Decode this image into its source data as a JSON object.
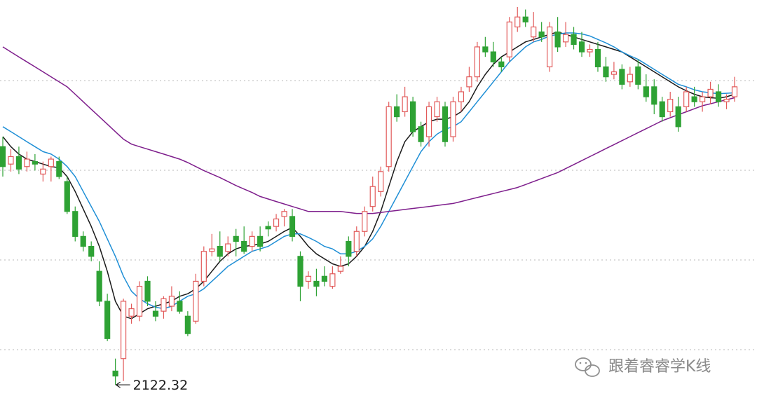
{
  "chart_data": {
    "type": "candlestick",
    "title": "",
    "xlabel": "",
    "ylabel": "",
    "price_range": [
      2110,
      2880
    ],
    "grid": {
      "horizontal": true,
      "style": "dotted"
    },
    "candles": [
      [
        2600,
        2560,
        2620,
        2540
      ],
      [
        2565,
        2580,
        2595,
        2550
      ],
      [
        2580,
        2555,
        2600,
        2545
      ],
      [
        2560,
        2575,
        2590,
        2550
      ],
      [
        2570,
        2565,
        2585,
        2552
      ],
      [
        2545,
        2555,
        2570,
        2530
      ],
      [
        2560,
        2575,
        2580,
        2530
      ],
      [
        2570,
        2540,
        2580,
        2535
      ],
      [
        2530,
        2470,
        2540,
        2465
      ],
      [
        2470,
        2420,
        2480,
        2410
      ],
      [
        2420,
        2400,
        2430,
        2390
      ],
      [
        2400,
        2380,
        2410,
        2370
      ],
      [
        2350,
        2290,
        2370,
        2280
      ],
      [
        2290,
        2215,
        2305,
        2210
      ],
      [
        2150,
        2140,
        2175,
        2122.32
      ],
      [
        2175,
        2290,
        2295,
        2130
      ],
      [
        2260,
        2275,
        2285,
        2245
      ],
      [
        2260,
        2320,
        2330,
        2250
      ],
      [
        2330,
        2290,
        2340,
        2280
      ],
      [
        2270,
        2260,
        2290,
        2250
      ],
      [
        2270,
        2295,
        2300,
        2255
      ],
      [
        2280,
        2300,
        2320,
        2270
      ],
      [
        2290,
        2270,
        2310,
        2265
      ],
      [
        2260,
        2225,
        2270,
        2220
      ],
      [
        2250,
        2330,
        2345,
        2245
      ],
      [
        2330,
        2390,
        2400,
        2320
      ],
      [
        2390,
        2395,
        2425,
        2380
      ],
      [
        2400,
        2380,
        2430,
        2370
      ],
      [
        2390,
        2405,
        2420,
        2380
      ],
      [
        2420,
        2410,
        2435,
        2380
      ],
      [
        2410,
        2390,
        2440,
        2385
      ],
      [
        2400,
        2420,
        2430,
        2390
      ],
      [
        2420,
        2400,
        2440,
        2390
      ],
      [
        2440,
        2435,
        2450,
        2420
      ],
      [
        2440,
        2455,
        2465,
        2430
      ],
      [
        2460,
        2470,
        2475,
        2440
      ],
      [
        2460,
        2420,
        2475,
        2410
      ],
      [
        2380,
        2320,
        2390,
        2290
      ],
      [
        2330,
        2340,
        2350,
        2315
      ],
      [
        2330,
        2320,
        2355,
        2300
      ],
      [
        2340,
        2330,
        2360,
        2320
      ],
      [
        2320,
        2345,
        2360,
        2315
      ],
      [
        2350,
        2360,
        2380,
        2345
      ],
      [
        2410,
        2380,
        2420,
        2360
      ],
      [
        2390,
        2430,
        2440,
        2380
      ],
      [
        2430,
        2470,
        2480,
        2420
      ],
      [
        2480,
        2520,
        2540,
        2470
      ],
      [
        2510,
        2550,
        2560,
        2500
      ],
      [
        2560,
        2680,
        2690,
        2550
      ],
      [
        2680,
        2660,
        2705,
        2650
      ],
      [
        2670,
        2700,
        2720,
        2660
      ],
      [
        2690,
        2630,
        2700,
        2620
      ],
      [
        2640,
        2610,
        2650,
        2600
      ],
      [
        2620,
        2680,
        2690,
        2600
      ],
      [
        2660,
        2690,
        2700,
        2650
      ],
      [
        2680,
        2610,
        2690,
        2600
      ],
      [
        2620,
        2690,
        2700,
        2610
      ],
      [
        2690,
        2710,
        2720,
        2670
      ],
      [
        2720,
        2740,
        2760,
        2710
      ],
      [
        2740,
        2800,
        2810,
        2730
      ],
      [
        2800,
        2790,
        2820,
        2780
      ],
      [
        2790,
        2770,
        2810,
        2760
      ],
      [
        2770,
        2760,
        2780,
        2750
      ],
      [
        2780,
        2850,
        2860,
        2770
      ],
      [
        2840,
        2860,
        2880,
        2830
      ],
      [
        2860,
        2850,
        2875,
        2840
      ],
      [
        2820,
        2840,
        2870,
        2810
      ],
      [
        2830,
        2820,
        2850,
        2810
      ],
      [
        2760,
        2840,
        2850,
        2750
      ],
      [
        2830,
        2800,
        2860,
        2790
      ],
      [
        2810,
        2825,
        2850,
        2800
      ],
      [
        2825,
        2805,
        2840,
        2795
      ],
      [
        2810,
        2790,
        2830,
        2780
      ],
      [
        2790,
        2795,
        2805,
        2780
      ],
      [
        2795,
        2760,
        2810,
        2750
      ],
      [
        2760,
        2740,
        2780,
        2730
      ],
      [
        2745,
        2750,
        2770,
        2735
      ],
      [
        2755,
        2725,
        2765,
        2715
      ],
      [
        2730,
        2745,
        2760,
        2720
      ],
      [
        2760,
        2725,
        2775,
        2715
      ],
      [
        2720,
        2700,
        2745,
        2690
      ],
      [
        2720,
        2685,
        2735,
        2665
      ],
      [
        2690,
        2660,
        2700,
        2650
      ],
      [
        2670,
        2695,
        2710,
        2660
      ],
      [
        2680,
        2640,
        2700,
        2630
      ],
      [
        2680,
        2710,
        2720,
        2670
      ],
      [
        2700,
        2690,
        2720,
        2680
      ],
      [
        2690,
        2700,
        2710,
        2670
      ],
      [
        2700,
        2715,
        2730,
        2685
      ],
      [
        2710,
        2690,
        2725,
        2680
      ],
      [
        2690,
        2695,
        2705,
        2675
      ],
      [
        2700,
        2720,
        2740,
        2690
      ]
    ],
    "ma_lines": [
      {
        "color": "#1a1a1a",
        "values": [
          2620,
          2600,
          2585,
          2575,
          2570,
          2565,
          2560,
          2558,
          2540,
          2510,
          2475,
          2440,
          2400,
          2350,
          2290,
          2260,
          2255,
          2265,
          2275,
          2280,
          2285,
          2290,
          2300,
          2305,
          2315,
          2330,
          2350,
          2370,
          2385,
          2395,
          2400,
          2402,
          2405,
          2410,
          2420,
          2430,
          2438,
          2420,
          2400,
          2385,
          2375,
          2365,
          2360,
          2365,
          2380,
          2400,
          2430,
          2470,
          2520,
          2570,
          2610,
          2630,
          2640,
          2650,
          2655,
          2655,
          2660,
          2670,
          2690,
          2720,
          2745,
          2765,
          2780,
          2790,
          2800,
          2810,
          2815,
          2820,
          2825,
          2830,
          2825,
          2820,
          2815,
          2810,
          2805,
          2800,
          2795,
          2790,
          2780,
          2770,
          2760,
          2750,
          2740,
          2730,
          2720,
          2712,
          2705,
          2700,
          2698,
          2697,
          2700,
          2705
        ]
      },
      {
        "color": "#1f8fd6",
        "values": [
          2640,
          2630,
          2620,
          2610,
          2600,
          2590,
          2585,
          2575,
          2560,
          2540,
          2510,
          2480,
          2450,
          2415,
          2380,
          2340,
          2310,
          2295,
          2285,
          2278,
          2275,
          2280,
          2290,
          2300,
          2305,
          2315,
          2330,
          2345,
          2360,
          2370,
          2380,
          2390,
          2395,
          2400,
          2410,
          2420,
          2425,
          2425,
          2418,
          2410,
          2400,
          2395,
          2385,
          2385,
          2390,
          2400,
          2415,
          2440,
          2470,
          2500,
          2530,
          2560,
          2590,
          2610,
          2625,
          2635,
          2640,
          2650,
          2670,
          2690,
          2710,
          2730,
          2750,
          2770,
          2785,
          2800,
          2810,
          2815,
          2822,
          2825,
          2828,
          2828,
          2826,
          2822,
          2815,
          2808,
          2800,
          2790,
          2782,
          2775,
          2765,
          2755,
          2745,
          2735,
          2725,
          2720,
          2714,
          2710,
          2708,
          2706,
          2707,
          2708
        ]
      },
      {
        "color": "#7e1e8c",
        "values": [
          2800,
          2790,
          2780,
          2770,
          2760,
          2750,
          2740,
          2730,
          2720,
          2705,
          2690,
          2675,
          2660,
          2645,
          2630,
          2615,
          2605,
          2600,
          2595,
          2590,
          2585,
          2580,
          2575,
          2568,
          2560,
          2552,
          2545,
          2538,
          2530,
          2522,
          2515,
          2508,
          2500,
          2495,
          2490,
          2485,
          2480,
          2475,
          2470,
          2470,
          2470,
          2470,
          2470,
          2468,
          2466,
          2466,
          2466,
          2468,
          2470,
          2472,
          2474,
          2476,
          2478,
          2480,
          2482,
          2484,
          2486,
          2490,
          2494,
          2498,
          2502,
          2506,
          2510,
          2514,
          2518,
          2524,
          2530,
          2536,
          2542,
          2548,
          2556,
          2564,
          2572,
          2580,
          2588,
          2596,
          2604,
          2612,
          2620,
          2628,
          2636,
          2644,
          2652,
          2658,
          2664,
          2670,
          2676,
          2682,
          2686,
          2690,
          2694,
          2698
        ]
      }
    ],
    "annotations": [
      {
        "candle_index": 14,
        "price": 2122.32,
        "text": "2122.32"
      }
    ]
  },
  "watermark": {
    "icon": "wechat-icon",
    "text": "跟着睿睿学K线"
  },
  "colors": {
    "up": "#e25a5a",
    "down": "#2ea234",
    "grid": "#b8b8b8"
  }
}
